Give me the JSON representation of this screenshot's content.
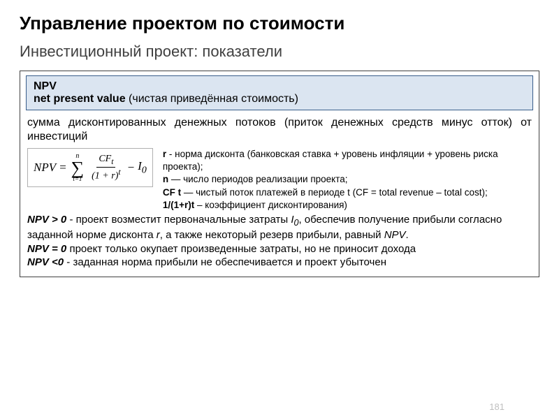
{
  "title": "Управление проектом по стоимости",
  "subtitle": "Инвестиционный проект: показатели",
  "box": {
    "line1": "NPV",
    "line2_bold": "net present value ",
    "line2_plain": "(чистая приведённая стоимость)"
  },
  "definition": "сумма дисконтированных денежных потоков (приток денежных средств минус отток) от инвестиций",
  "formula": {
    "lhs": "NPV",
    "eq1": "=",
    "sum_upper": "n",
    "sum_lower": "t=1",
    "num": "CF",
    "num_sub": "t",
    "den_a": "(1 + r)",
    "den_sup": "t",
    "minus": "−",
    "I": "I",
    "I_sub": "0"
  },
  "notes": {
    "r_b": "r",
    "r_t": " - норма дисконта (банковская ставка + уровень инфляции + уровень риска проекта);",
    "n_b": "n",
    "n_t": " — число периодов реализации проекта;",
    "cf_b": "CF t",
    "cf_t": " — чистый поток платежей в периоде t (CF = total revenue – total cost);",
    "d_b": "1/(1+r)t",
    "d_t": " – коэффициент дисконтирования)"
  },
  "interp": {
    "g0_prefix": "NPV > 0",
    "g0_a": " - проект возместит первоначальные затраты ",
    "g0_i1": "I",
    "g0_i1s": "0",
    "g0_b": ", обеспечив получение прибыли согласно заданной норме дисконта ",
    "g0_i2": "r",
    "g0_c": ", а также некоторый резерв прибыли, равный ",
    "g0_i3": "NPV",
    "g0_d": ".",
    "e0_prefix": "NPV = 0",
    "e0_t": " проект только окупает произведенные затраты, но не приносит дохода",
    "l0_prefix": "NPV <0",
    "l0_t": " - заданная норма прибыли не обеспечивается и проект убыточен"
  },
  "page": "181",
  "colors": {
    "box_bg": "#dbe5f1",
    "box_border": "#385d8a",
    "outer_border": "#404040",
    "pagenum": "#bfbfbf"
  }
}
